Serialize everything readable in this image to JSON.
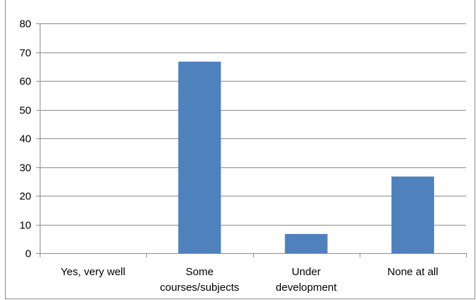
{
  "chart_data": {
    "type": "bar",
    "categories": [
      [
        "Yes, very well"
      ],
      [
        "Some",
        "courses/subjects"
      ],
      [
        "Under",
        "development"
      ],
      [
        "None at all"
      ]
    ],
    "values": [
      0,
      66.7,
      6.7,
      26.7
    ],
    "ylim": [
      0,
      80
    ],
    "yticks": [
      "0",
      "10",
      "20",
      "30",
      "40",
      "50",
      "60",
      "70",
      "80"
    ],
    "grid": true,
    "bar_color": "#4f81bd",
    "grid_color": "#8c8c8c"
  }
}
